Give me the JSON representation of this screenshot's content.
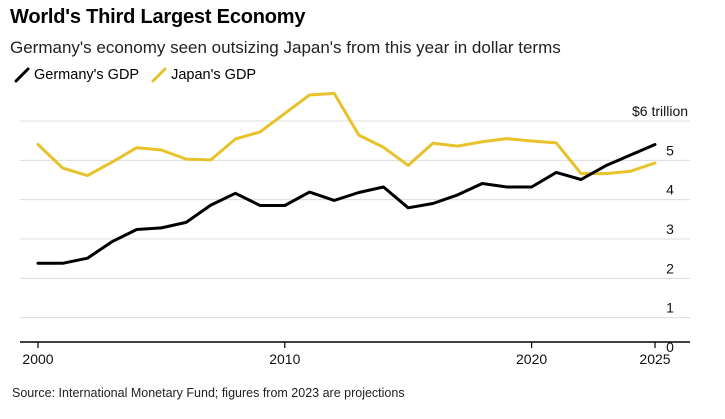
{
  "header": {
    "title": "World's Third Largest Economy",
    "subtitle": "Germany's economy seen outsizing Japan's from this year in dollar terms"
  },
  "footer": {
    "source": "Source: International Monetary Fund; figures from 2023 are projections"
  },
  "colors": {
    "germany": "#000000",
    "japan": "#e8c22a",
    "grid": "#dcdcdc",
    "axis": "#000000"
  },
  "chart_data": {
    "type": "line",
    "title": "World's Third Largest Economy",
    "subtitle": "Germany's economy seen outsizing Japan's from this year in dollar terms",
    "xlabel": "",
    "ylabel": "",
    "ylim": [
      0,
      6
    ],
    "xlim": [
      2000,
      2025
    ],
    "x_ticks": [
      {
        "value": 2000,
        "label": "2000"
      },
      {
        "value": 2010,
        "label": "2010"
      },
      {
        "value": 2020,
        "label": "2020"
      },
      {
        "value": 2025,
        "label": "2025"
      }
    ],
    "y_ticks": [
      {
        "value": 0,
        "label": "0"
      },
      {
        "value": 1,
        "label": "1"
      },
      {
        "value": 2,
        "label": "2"
      },
      {
        "value": 3,
        "label": "3"
      },
      {
        "value": 4,
        "label": "4"
      },
      {
        "value": 5,
        "label": "5"
      },
      {
        "value": 6,
        "label": "$6 trillion"
      }
    ],
    "grid": true,
    "legend_position": "top-left",
    "x": [
      2000,
      2001,
      2002,
      2003,
      2004,
      2005,
      2006,
      2007,
      2008,
      2009,
      2010,
      2011,
      2012,
      2013,
      2014,
      2015,
      2016,
      2017,
      2018,
      2019,
      2020,
      2021,
      2022,
      2023,
      2024,
      2025
    ],
    "series": [
      {
        "name": "Germany's GDP",
        "color": "#000000",
        "values": [
          1.95,
          1.95,
          2.08,
          2.5,
          2.81,
          2.85,
          2.99,
          3.43,
          3.73,
          3.42,
          3.42,
          3.76,
          3.55,
          3.75,
          3.89,
          3.36,
          3.47,
          3.69,
          3.98,
          3.89,
          3.89,
          4.26,
          4.08,
          4.43,
          4.7,
          4.97
        ]
      },
      {
        "name": "Japan's GDP",
        "color": "#e8c22a",
        "values": [
          4.97,
          4.37,
          4.18,
          4.52,
          4.89,
          4.83,
          4.6,
          4.58,
          5.11,
          5.29,
          5.76,
          6.23,
          6.27,
          5.21,
          4.9,
          4.44,
          5.0,
          4.93,
          5.04,
          5.12,
          5.06,
          5.01,
          4.23,
          4.23,
          4.29,
          4.5
        ]
      }
    ]
  }
}
